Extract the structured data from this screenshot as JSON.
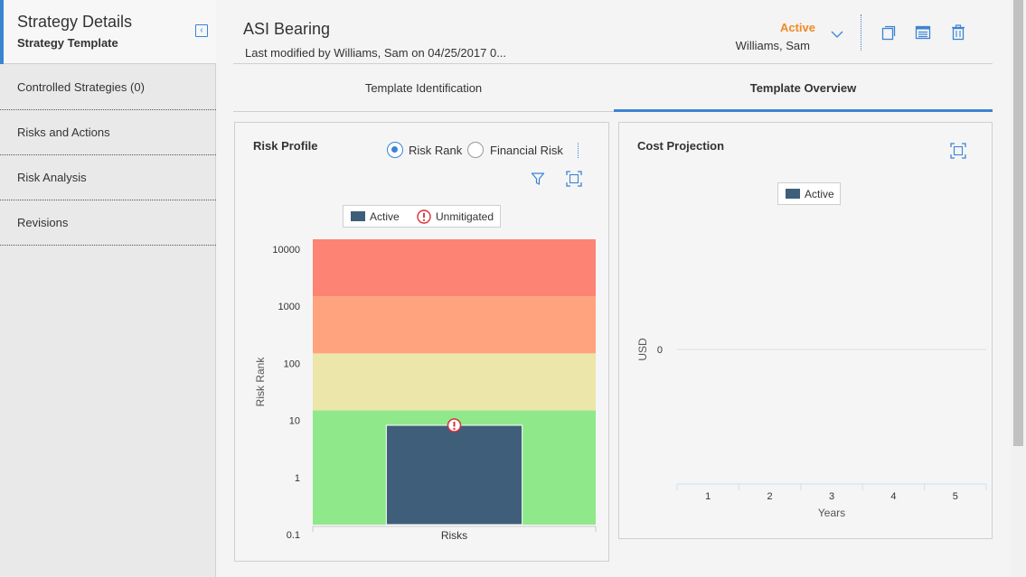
{
  "sidebar": {
    "title": "Strategy Details",
    "subtitle": "Strategy Template",
    "items": [
      {
        "label": "Controlled Strategies (0)"
      },
      {
        "label": "Risks and Actions"
      },
      {
        "label": "Risk Analysis"
      },
      {
        "label": "Revisions"
      }
    ]
  },
  "header": {
    "title": "ASI Bearing",
    "last_modified": "Last modified by Williams, Sam on 04/25/2017 0...",
    "state": "Active",
    "state_user": "Williams, Sam"
  },
  "tabs": [
    {
      "label": "Template Identification",
      "active": false
    },
    {
      "label": "Template Overview",
      "active": true
    }
  ],
  "risk_profile": {
    "title": "Risk Profile",
    "radio_options": [
      {
        "label": "Risk Rank",
        "selected": true
      },
      {
        "label": "Financial Risk",
        "selected": false
      }
    ],
    "legend": [
      {
        "label": "Active",
        "color": "#3f5e7a"
      },
      {
        "label": "Unmitigated",
        "color": "#d9303a"
      }
    ]
  },
  "cost_projection": {
    "title": "Cost Projection",
    "legend": [
      {
        "label": "Active",
        "color": "#3f5e7a"
      }
    ]
  },
  "colors": {
    "accent": "#3b84d4",
    "state_active": "#f08a24",
    "band_red": "#fd8374",
    "band_orange": "#fea37d",
    "band_yellow": "#ede6ab",
    "band_green": "#8fe98a",
    "bar": "#3f5e7a",
    "unmitigated": "#d9303a"
  },
  "chart_data": [
    {
      "type": "bar",
      "title": "Risk Profile",
      "categories": [
        "Risks"
      ],
      "series": [
        {
          "name": "Active",
          "values": [
            5.5
          ]
        }
      ],
      "markers": [
        {
          "name": "Unmitigated",
          "category": "Risks",
          "value": 5.5
        }
      ],
      "xlabel": "Risks",
      "ylabel": "Risk Rank",
      "y_scale": "log",
      "yticks": [
        "10000",
        "1000",
        "100",
        "10",
        "1",
        "0.1"
      ],
      "ylim": [
        0.1,
        10000
      ],
      "bands": [
        {
          "from": 1000,
          "to": 10000,
          "color": "#fd8374"
        },
        {
          "from": 100,
          "to": 1000,
          "color": "#fea37d"
        },
        {
          "from": 10,
          "to": 100,
          "color": "#ede6ab"
        },
        {
          "from": 0.1,
          "to": 10,
          "color": "#8fe98a"
        }
      ],
      "legend": "top"
    },
    {
      "type": "bar",
      "title": "Cost Projection",
      "categories": [
        "1",
        "2",
        "3",
        "4",
        "5"
      ],
      "series": [
        {
          "name": "Active",
          "values": [
            0,
            0,
            0,
            0,
            0
          ]
        }
      ],
      "xlabel": "Years",
      "ylabel": "USD",
      "yticks": [
        "0"
      ],
      "legend": "top"
    }
  ]
}
